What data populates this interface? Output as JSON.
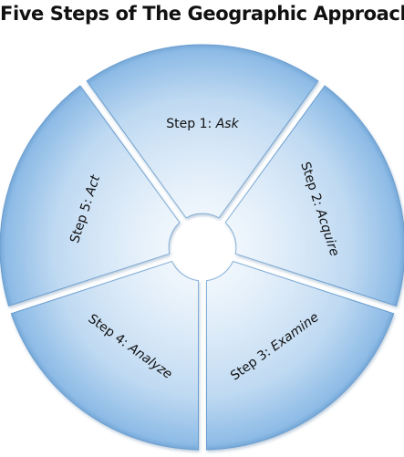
{
  "title": "Five Steps of The Geographic Approach",
  "steps": [
    {
      "prefix": "Step 1: ",
      "name": "Ask"
    },
    {
      "prefix": "Step 2: ",
      "name": "Acquire"
    },
    {
      "prefix": "Step 3: ",
      "name": "Examine"
    },
    {
      "prefix": "Step 4: ",
      "name": "Analyze"
    },
    {
      "prefix": "Step 5: ",
      "name": "Act"
    }
  ],
  "colors": {
    "segment_fill": "#c3dbf2",
    "segment_rim": "#6a9ed0",
    "gap": "#ffffff",
    "text": "#111111"
  }
}
